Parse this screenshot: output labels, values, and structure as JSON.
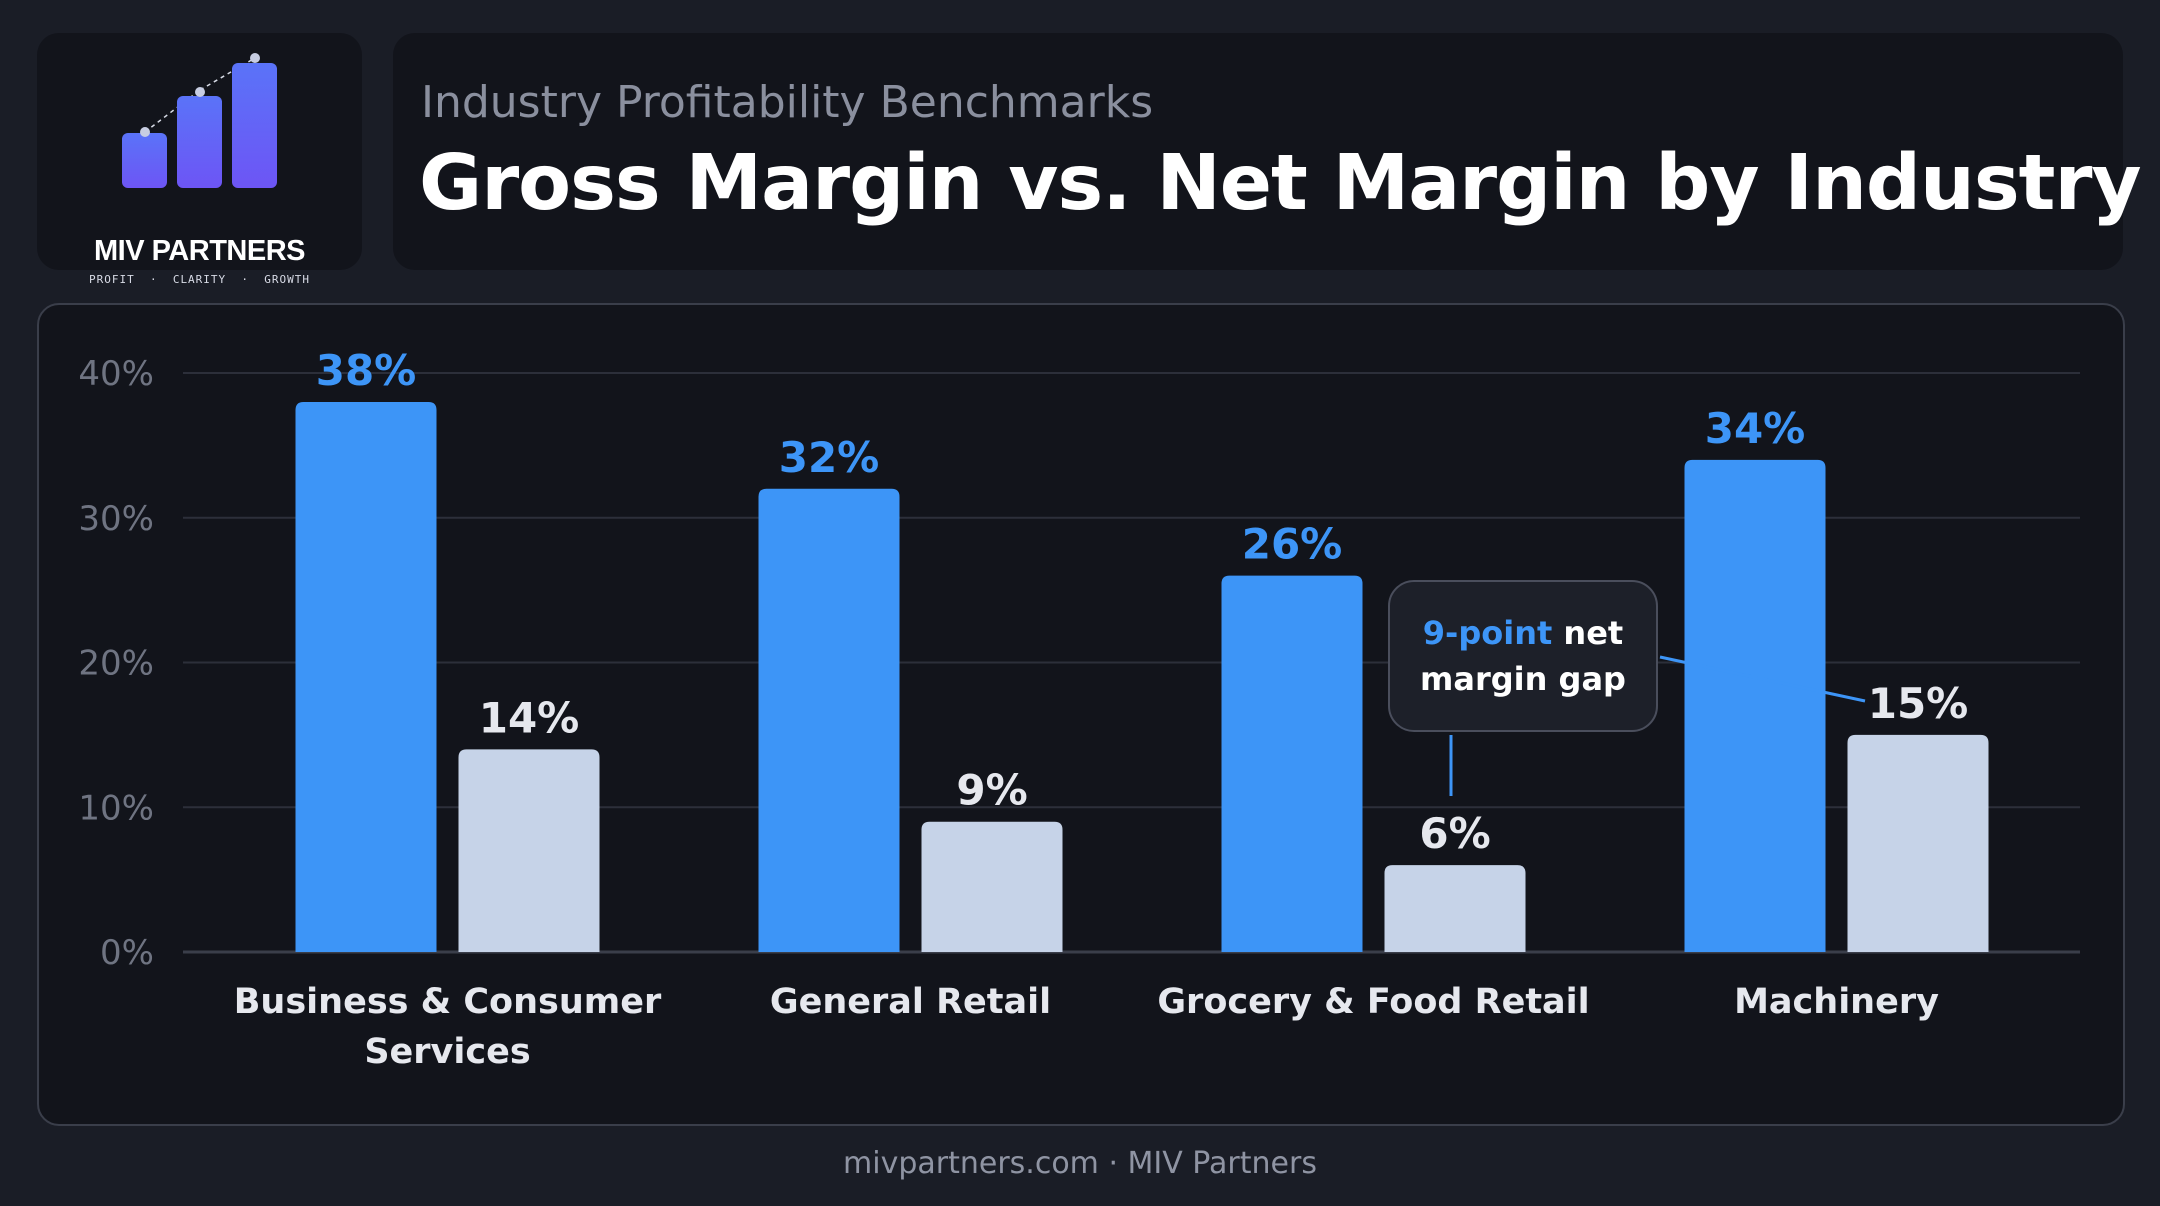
{
  "brand": {
    "name": "MIV PARTNERS",
    "tagline": "PROFIT  ·  CLARITY  ·  GROWTH",
    "colors": {
      "logo_gradient_start": "#6d55f5",
      "logo_gradient_end": "#4f6ff7"
    }
  },
  "header": {
    "subtitle": "Industry Profitability Benchmarks",
    "title": "Gross Margin vs. Net Margin by Industry"
  },
  "callout": {
    "highlight": "9-point",
    "text_after_highlight": " net",
    "line2": "margin gap"
  },
  "footer": {
    "text": "mivpartners.com · MIV Partners"
  },
  "chart_data": {
    "type": "bar",
    "categories": [
      [
        "Business & Consumer",
        "Services"
      ],
      [
        "General Retail"
      ],
      [
        "Grocery & Food Retail"
      ],
      [
        "Machinery"
      ]
    ],
    "series": [
      {
        "values": [
          38,
          32,
          26,
          34
        ],
        "color": "#3d95f7",
        "labels": [
          "38%",
          "32%",
          "26%",
          "34%"
        ]
      },
      {
        "values": [
          14,
          9,
          6,
          15
        ],
        "color": "#c6d3e8",
        "labels": [
          "14%",
          "9%",
          "6%",
          "15%"
        ]
      }
    ],
    "y_ticks": [
      0,
      10,
      20,
      30,
      40
    ],
    "y_tick_labels": [
      "0%",
      "10%",
      "20%",
      "30%",
      "40%"
    ],
    "ylim": [
      0,
      40
    ],
    "grid": true,
    "colors": {
      "gross_label": "#3d95f7",
      "net_label": "#e6e8ee",
      "tick_label": "#6f7482",
      "category_label": "#e6e8ee",
      "grid": "#2c2f3a"
    }
  }
}
